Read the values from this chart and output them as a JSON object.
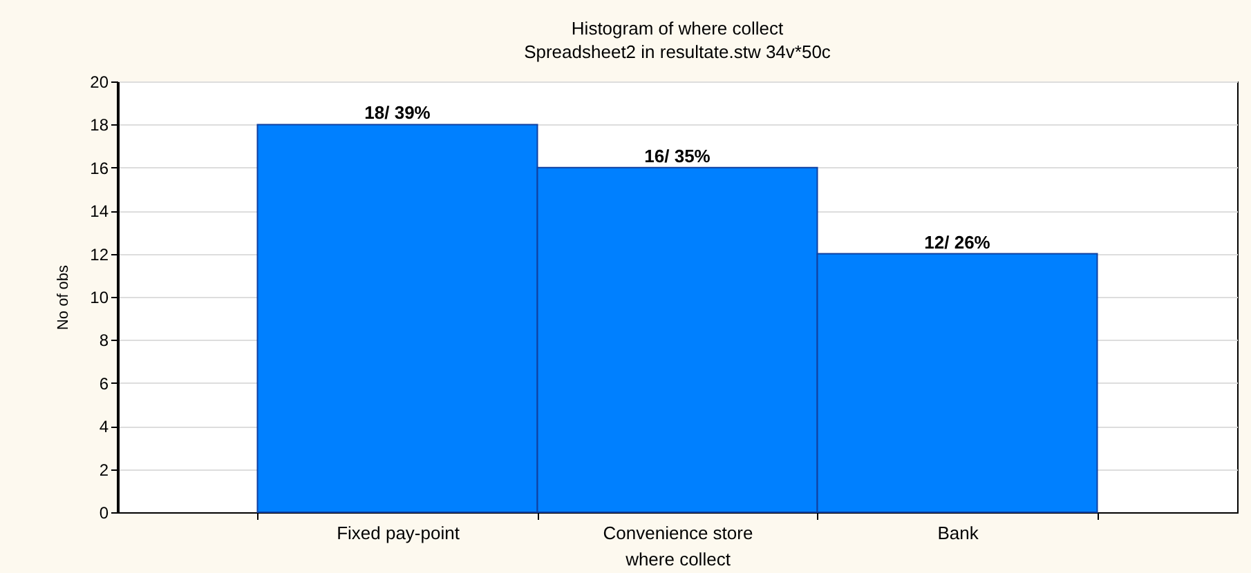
{
  "chart_data": {
    "type": "bar",
    "title": "Histogram of where collect",
    "subtitle": "Spreadsheet2 in resultate.stw 34v*50c",
    "xlabel": "where collect",
    "ylabel": "No of obs",
    "categories": [
      "Fixed pay-point",
      "Convenience store",
      "Bank"
    ],
    "values": [
      18,
      16,
      12
    ],
    "color": "#0080ff",
    "value_labels": [
      "18/ 39%",
      "16/ 35%",
      "12/ 26%"
    ],
    "ylim": [
      0,
      20
    ],
    "yticks": [
      0,
      2,
      4,
      6,
      8,
      10,
      12,
      14,
      16,
      18,
      20
    ],
    "grid": "y"
  }
}
